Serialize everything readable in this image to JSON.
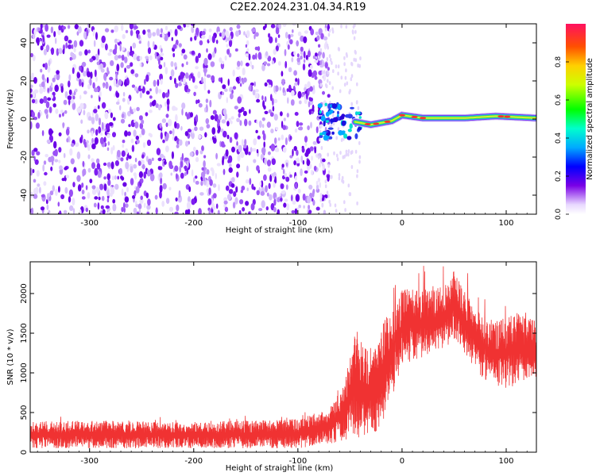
{
  "title": "C2E2.2024.231.04.34.R19",
  "chart_data": [
    {
      "type": "heatmap",
      "xlabel": "Height of straight line (km)",
      "ylabel": "Frequency (Hz)",
      "xlim": [
        -357,
        129
      ],
      "ylim": [
        -50,
        50
      ],
      "xticks": [
        -300,
        -200,
        -100,
        0,
        100
      ],
      "yticks": [
        -40,
        -20,
        0,
        20,
        40
      ],
      "colorbar": {
        "label": "Normalized spectral amplitude",
        "range": [
          0,
          1
        ],
        "ticks": [
          0.0,
          0.2,
          0.4,
          0.6,
          0.8
        ]
      },
      "signal_line": [
        {
          "x": -45,
          "y": -1.5
        },
        {
          "x": -30,
          "y": -3
        },
        {
          "x": -10,
          "y": -1
        },
        {
          "x": 0,
          "y": 2
        },
        {
          "x": 20,
          "y": 0.5
        },
        {
          "x": 60,
          "y": 0.5
        },
        {
          "x": 90,
          "y": 1.5
        },
        {
          "x": 129,
          "y": 0.5
        }
      ],
      "noise_region_x": [
        -357,
        -80
      ]
    },
    {
      "type": "line",
      "xlabel": "Height of straight line (km)",
      "ylabel": "SNR (10 * v/v)",
      "xlim": [
        -357,
        129
      ],
      "ylim": [
        0,
        2400
      ],
      "xticks": [
        -300,
        -200,
        -100,
        0,
        100
      ],
      "yticks": [
        0,
        500,
        1000,
        1500,
        2000
      ],
      "color": "#f03232",
      "envelope": {
        "x": [
          -357,
          -300,
          -200,
          -100,
          -70,
          -55,
          -45,
          -35,
          -25,
          -15,
          -5,
          0,
          10,
          20,
          30,
          40,
          50,
          60,
          70,
          80,
          90,
          100,
          110,
          120,
          129
        ],
        "low": [
          50,
          50,
          50,
          50,
          100,
          150,
          200,
          150,
          250,
          450,
          800,
          1100,
          1150,
          1200,
          1250,
          1300,
          1400,
          1250,
          1050,
          900,
          850,
          800,
          850,
          900,
          950
        ],
        "high": [
          380,
          400,
          380,
          420,
          550,
          900,
          1650,
          1300,
          1350,
          1750,
          1950,
          2050,
          2100,
          2050,
          2050,
          2100,
          2300,
          2050,
          1850,
          1700,
          1650,
          1700,
          1750,
          1700,
          1650
        ]
      }
    }
  ]
}
